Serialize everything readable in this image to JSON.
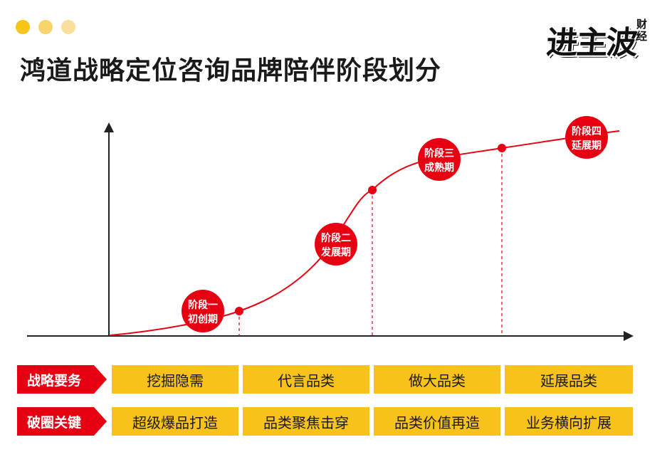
{
  "header": {
    "title": "鸿道战略定位咨询品牌陪伴阶段划分",
    "window_dots_colors": [
      "#f5c518",
      "#f7d36b",
      "#f9df9a"
    ]
  },
  "logo": {
    "main": "进主波",
    "sub": "财经"
  },
  "stages": [
    {
      "line1": "阶段一",
      "line2": "初创期"
    },
    {
      "line1": "阶段二",
      "line2": "发展期"
    },
    {
      "line1": "阶段三",
      "line2": "成熟期"
    },
    {
      "line1": "阶段四",
      "line2": "延展期"
    }
  ],
  "rows": [
    {
      "label": "战略要务",
      "cells": [
        "挖掘隐需",
        "代言品类",
        "做大品类",
        "延展品类"
      ]
    },
    {
      "label": "破圈关键",
      "cells": [
        "超级爆品打造",
        "品类聚焦击穿",
        "品类价值再造",
        "业务横向扩展"
      ]
    }
  ],
  "colors": {
    "accent_red": "#e60012",
    "cell_yellow": "#f7c21a",
    "axis": "#222222"
  }
}
